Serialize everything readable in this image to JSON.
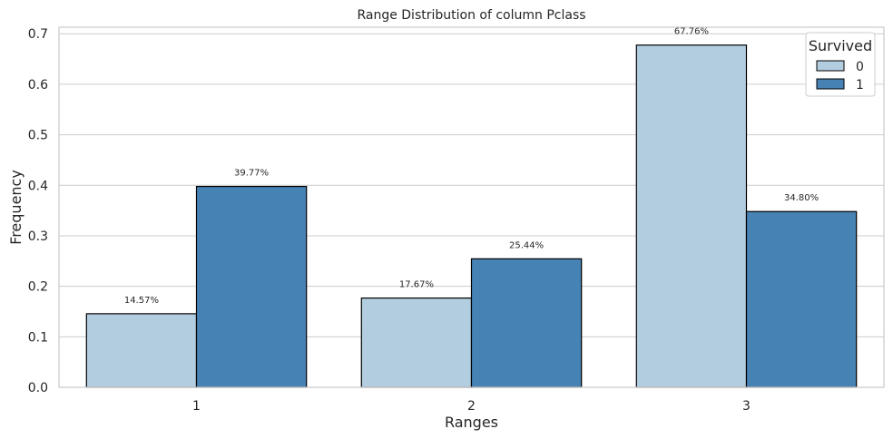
{
  "chart_data": {
    "type": "bar",
    "title": "Range Distribution of column Pclass",
    "xlabel": "Ranges",
    "ylabel": "Frequency",
    "categories": [
      "1",
      "2",
      "3"
    ],
    "series": [
      {
        "name": "0",
        "values": [
          0.1457,
          0.1767,
          0.6776
        ],
        "labels": [
          "14.57%",
          "17.67%",
          "67.76%"
        ],
        "color": "#b3cde0"
      },
      {
        "name": "1",
        "values": [
          0.3977,
          0.2544,
          0.348
        ],
        "labels": [
          "39.77%",
          "25.44%",
          "34.80%"
        ],
        "color": "#4682b4"
      }
    ],
    "ylim": [
      0,
      0.713
    ],
    "yticks": [
      "0.0",
      "0.1",
      "0.2",
      "0.3",
      "0.4",
      "0.5",
      "0.6",
      "0.7"
    ],
    "grid": "horizontal",
    "legend": {
      "title": "Survived",
      "placement": "top-right"
    },
    "bar_edge_color": "#000000"
  }
}
